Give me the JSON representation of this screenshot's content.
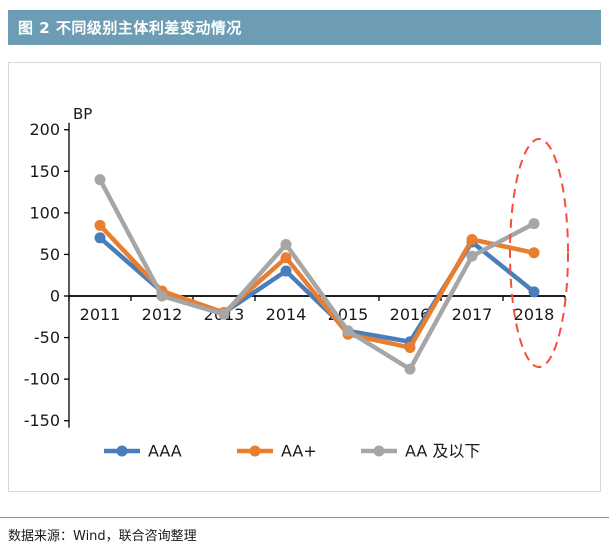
{
  "header": {
    "title": "图 2 不同级别主体利差变动情况",
    "bg_color": "#6c9db5"
  },
  "chart_data": {
    "type": "line",
    "title": "不同级别主体利差变动情况",
    "ylabel": "BP",
    "xlabel": "",
    "categories": [
      "2011",
      "2012",
      "2013",
      "2014",
      "2015",
      "2016",
      "2017",
      "2018"
    ],
    "yticks": [
      200,
      150,
      100,
      50,
      0,
      -50,
      -100,
      -150
    ],
    "ylim": [
      -150,
      200
    ],
    "grid": false,
    "legend_position": "bottom",
    "series": [
      {
        "name": "AAA",
        "color": "#4a7ebb",
        "values": [
          70,
          5,
          -20,
          30,
          -42,
          -55,
          65,
          5
        ]
      },
      {
        "name": "AA+",
        "color": "#e87e2e",
        "values": [
          85,
          6,
          -20,
          46,
          -46,
          -62,
          68,
          52
        ]
      },
      {
        "name": "AA 及以下",
        "color": "#a6a6a6",
        "values": [
          140,
          0,
          -22,
          62,
          -42,
          -88,
          48,
          87
        ]
      }
    ],
    "annotation": {
      "type": "dashed-ellipse",
      "color": "#f4503a",
      "x_category": "2018",
      "note": "highlight of 2018 values"
    }
  },
  "footer": {
    "source": "数据来源：Wind，联合咨询整理"
  }
}
